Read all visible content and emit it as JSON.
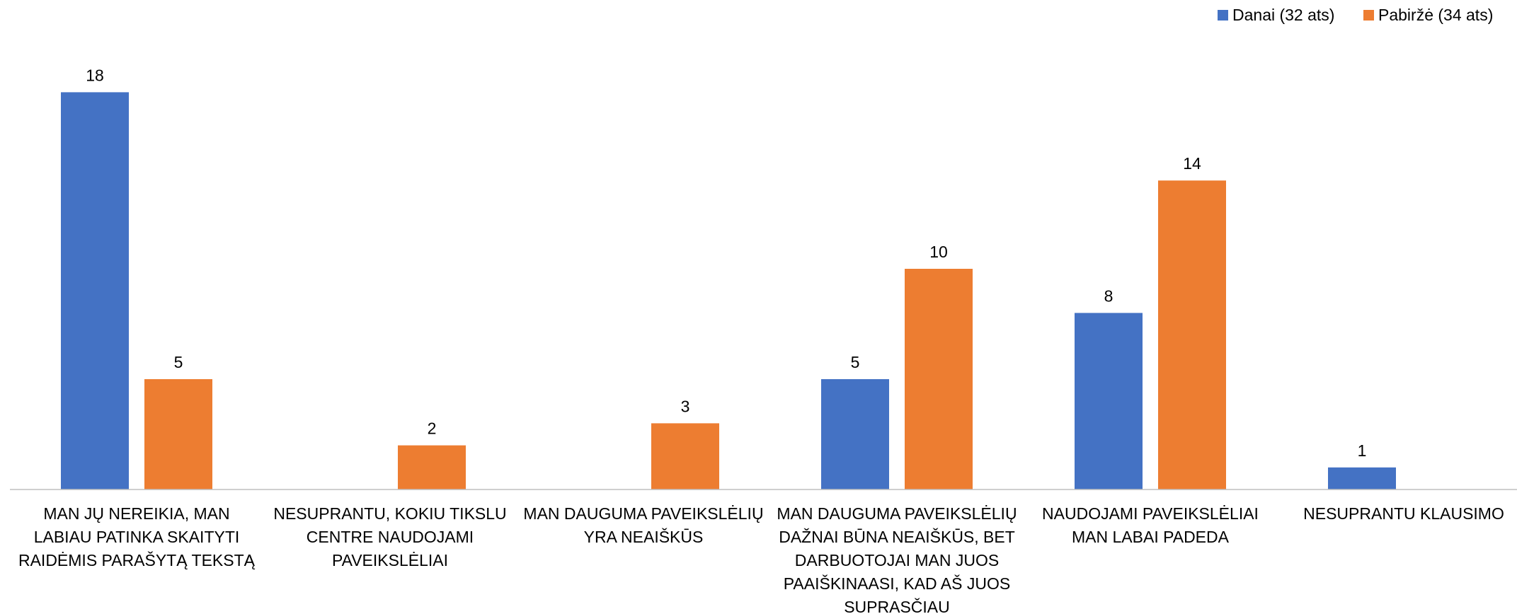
{
  "chart_data": {
    "type": "bar",
    "categories": [
      "MAN JŲ NEREIKIA, MAN LABIAU PATINKA SKAITYTI RAIDĖMIS PARAŠYTĄ TEKSTĄ",
      "NESUPRANTU, KOKIU TIKSLU CENTRE NAUDOJAMI PAVEIKSLĖLIAI",
      "MAN DAUGUMA PAVEIKSLĖLIŲ YRA NEAIŠKŪS",
      "MAN DAUGUMA PAVEIKSLĖLIŲ DAŽNAI BŪNA NEAIŠKŪS, BET DARBUOTOJAI MAN JUOS PAAIŠKINAASI, KAD AŠ JUOS SUPRASČIAU",
      "NAUDOJAMI PAVEIKSLĖLIAI MAN LABAI PADEDA",
      "NESUPRANTU KLAUSIMO"
    ],
    "series": [
      {
        "name": "Danai (32 ats)",
        "color": "#4472c4",
        "values": [
          18,
          null,
          null,
          5,
          8,
          1
        ]
      },
      {
        "name": "Pabiržė (34 ats)",
        "color": "#ed7d31",
        "values": [
          5,
          2,
          3,
          10,
          14,
          null
        ]
      }
    ],
    "ylim": [
      0,
      20
    ],
    "legend": "top-right"
  }
}
